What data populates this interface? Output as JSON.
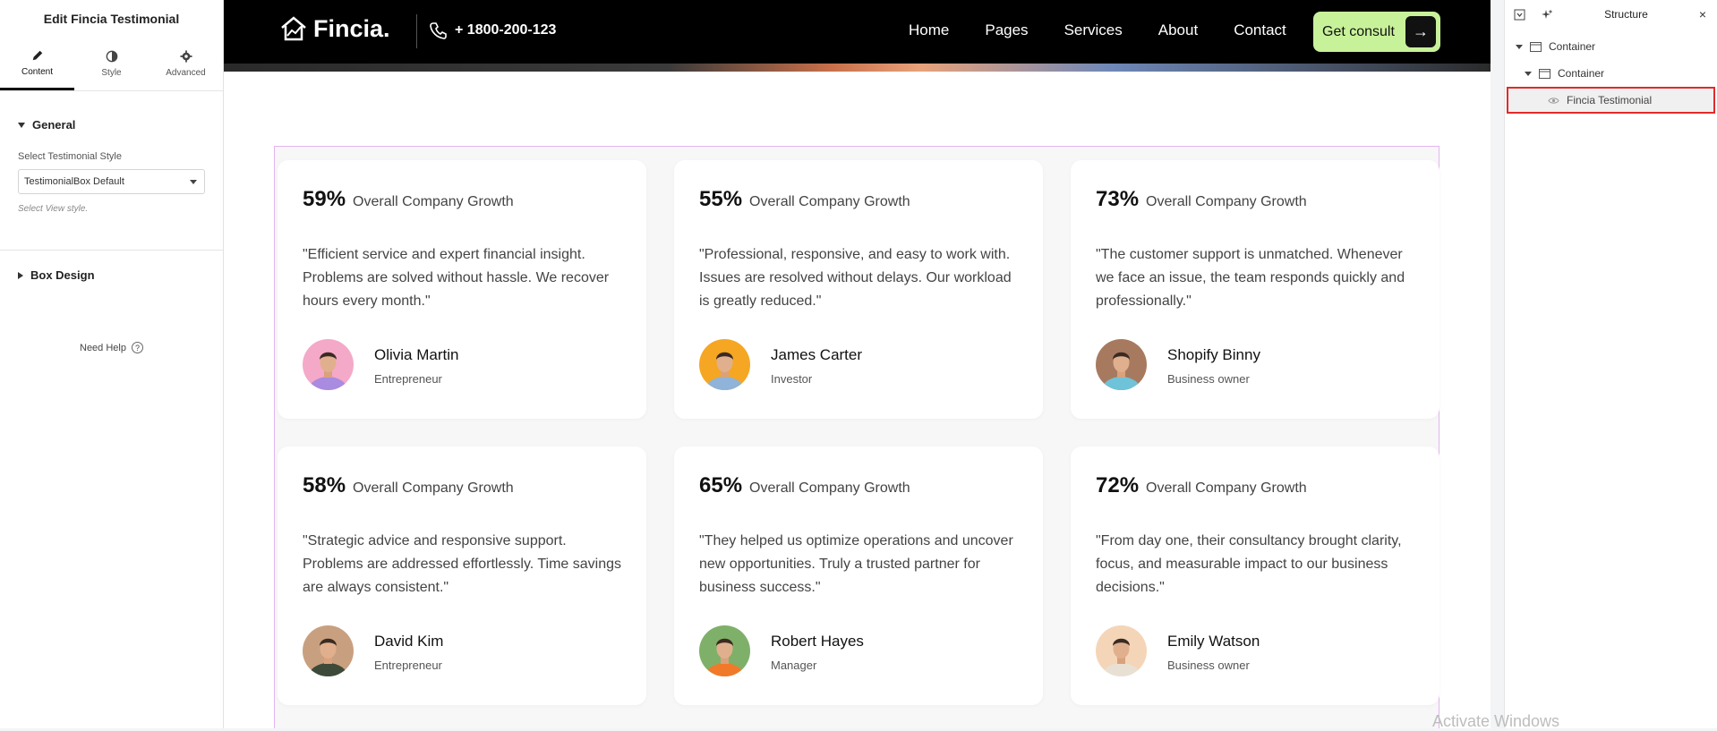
{
  "editor": {
    "title": "Edit Fincia Testimonial",
    "tabs": [
      {
        "label": "Content",
        "icon": "pencil-icon",
        "active": true
      },
      {
        "label": "Style",
        "icon": "half-circle-icon",
        "active": false
      },
      {
        "label": "Advanced",
        "icon": "gear-icon",
        "active": false
      }
    ],
    "general_section": "General",
    "style_field_label": "Select Testimonial Style",
    "style_value": "TestimonialBox Default",
    "style_help": "Select View style.",
    "box_design_section": "Box Design",
    "need_help": "Need Help",
    "need_help_icon": "?"
  },
  "site": {
    "logo": "Fincia.",
    "phone": "+ 1800-200-123",
    "nav": [
      "Home",
      "Pages",
      "Services",
      "About",
      "Contact"
    ],
    "cta": "Get consult",
    "cta_arrow": "→",
    "accent": "#c8f29a"
  },
  "testimonials": [
    {
      "stat": "59%",
      "stat_label": "Overall Company Growth",
      "quote": "\"Efficient service and expert financial insight. Problems are solved without hassle. We recover hours every month.\"",
      "name": "Olivia Martin",
      "role": "Entrepreneur",
      "avatar_bg": "#f4a9c8",
      "shirt": "#a98be0"
    },
    {
      "stat": "55%",
      "stat_label": "Overall Company Growth",
      "quote": "\"Professional, responsive, and easy to work with. Issues are resolved without delays. Our workload is greatly reduced.\"",
      "name": "James Carter",
      "role": "Investor",
      "avatar_bg": "#f5a623",
      "shirt": "#8fb3d9"
    },
    {
      "stat": "73%",
      "stat_label": "Overall Company Growth",
      "quote": "\"The customer support is unmatched. Whenever we face an issue, the team responds quickly and professionally.\"",
      "name": "Shopify Binny",
      "role": "Business owner",
      "avatar_bg": "#a77a60",
      "shirt": "#6fc3d8"
    },
    {
      "stat": "58%",
      "stat_label": "Overall Company Growth",
      "quote": "\"Strategic advice and responsive support. Problems are addressed effortlessly. Time savings are always consistent.\"",
      "name": "David Kim",
      "role": "Entrepreneur",
      "avatar_bg": "#c8a080",
      "shirt": "#3d4a3a"
    },
    {
      "stat": "65%",
      "stat_label": "Overall Company Growth",
      "quote": "\"They helped us optimize operations and uncover new opportunities. Truly a trusted partner for business success.\"",
      "name": "Robert Hayes",
      "role": "Manager",
      "avatar_bg": "#7fb069",
      "shirt": "#f07a2a"
    },
    {
      "stat": "72%",
      "stat_label": "Overall Company Growth",
      "quote": "\"From day one, their consultancy brought clarity, focus, and measurable impact to our business decisions.\"",
      "name": "Emily Watson",
      "role": "Business owner",
      "avatar_bg": "#f5d5b8",
      "shirt": "#e9e0d4"
    }
  ],
  "structure": {
    "title": "Structure",
    "items": [
      "Container",
      "Container",
      "Fincia Testimonial"
    ]
  },
  "watermark": "Activate Windows"
}
